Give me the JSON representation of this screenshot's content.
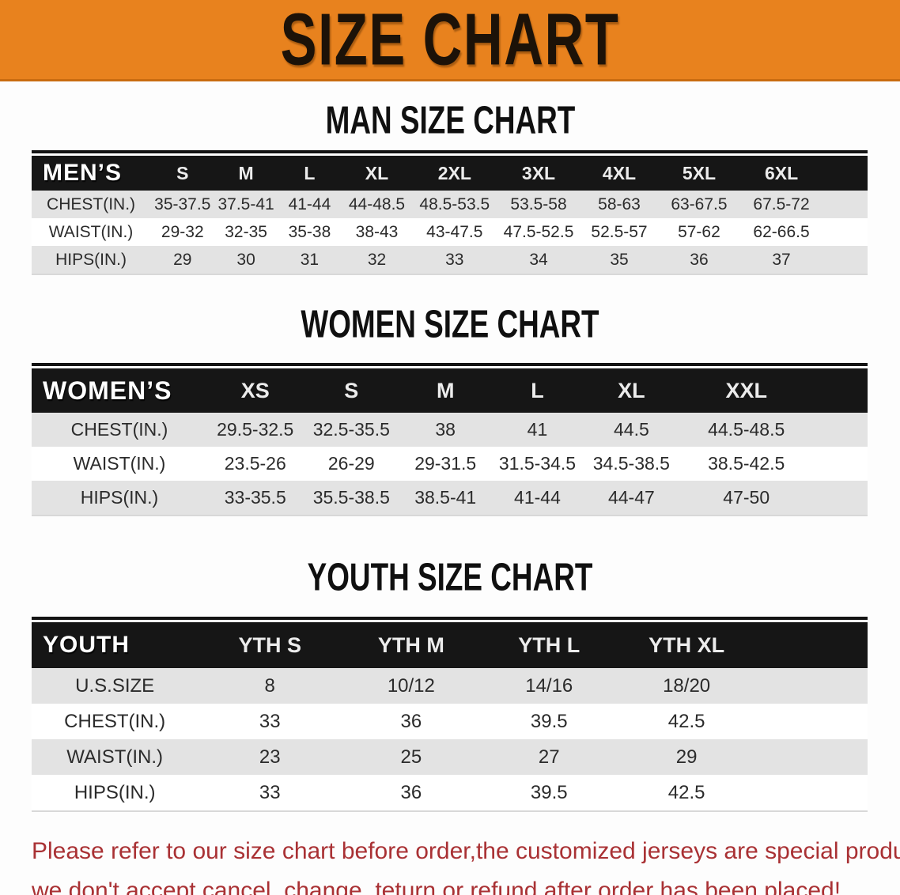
{
  "banner": {
    "title": "SIZE CHART",
    "background_color": "#E8821E",
    "title_color": "#1c1208"
  },
  "sections": [
    {
      "heading": "MAN SIZE CHART",
      "table": {
        "header_label": "MEN’S",
        "columns": [
          "S",
          "M",
          "L",
          "XL",
          "2XL",
          "3XL",
          "4XL",
          "5XL",
          "6XL"
        ],
        "rows": [
          {
            "label": "CHEST(IN.)",
            "values": [
              "35-37.5",
              "37.5-41",
              "41-44",
              "44-48.5",
              "48.5-53.5",
              "53.5-58",
              "58-63",
              "63-67.5",
              "67.5-72"
            ]
          },
          {
            "label": "WAIST(IN.)",
            "values": [
              "29-32",
              "32-35",
              "35-38",
              "38-43",
              "43-47.5",
              "47.5-52.5",
              "52.5-57",
              "57-62",
              "62-66.5"
            ]
          },
          {
            "label": "HIPS(IN.)",
            "values": [
              "29",
              "30",
              "31",
              "32",
              "33",
              "34",
              "35",
              "36",
              "37"
            ]
          }
        ]
      }
    },
    {
      "heading": "WOMEN SIZE CHART",
      "table": {
        "header_label": "WOMEN’S",
        "columns": [
          "XS",
          "S",
          "M",
          "L",
          "XL",
          "XXL"
        ],
        "rows": [
          {
            "label": "CHEST(IN.)",
            "values": [
              "29.5-32.5",
              "32.5-35.5",
              "38",
              "41",
              "44.5",
              "44.5-48.5"
            ]
          },
          {
            "label": "WAIST(IN.)",
            "values": [
              "23.5-26",
              "26-29",
              "29-31.5",
              "31.5-34.5",
              "34.5-38.5",
              "38.5-42.5"
            ]
          },
          {
            "label": "HIPS(IN.)",
            "values": [
              "33-35.5",
              "35.5-38.5",
              "38.5-41",
              "41-44",
              "44-47",
              "47-50"
            ]
          }
        ]
      }
    },
    {
      "heading": "YOUTH SIZE CHART",
      "table": {
        "header_label": "YOUTH",
        "columns": [
          "YTH S",
          "YTH M",
          "YTH L",
          "YTH XL"
        ],
        "rows": [
          {
            "label": "U.S.SIZE",
            "values": [
              "8",
              "10/12",
              "14/16",
              "18/20"
            ]
          },
          {
            "label": "CHEST(IN.)",
            "values": [
              "33",
              "36",
              "39.5",
              "42.5"
            ]
          },
          {
            "label": "WAIST(IN.)",
            "values": [
              "23",
              "25",
              "27",
              "29"
            ]
          },
          {
            "label": "HIPS(IN.)",
            "values": [
              "33",
              "36",
              "39.5",
              "42.5"
            ]
          }
        ]
      }
    }
  ],
  "footnote": {
    "line1": "Please refer to our size chart before order,the customized jerseys are special products,",
    "line2": "we don't accept cancel, change, teturn or refund after order has been placed!",
    "color": "#a93134"
  }
}
